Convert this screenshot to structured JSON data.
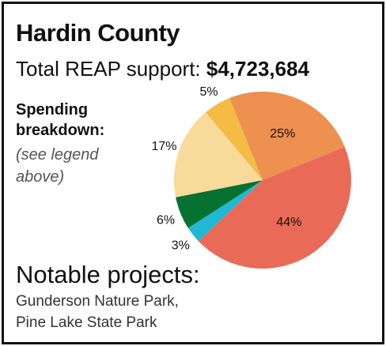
{
  "card": {
    "title": "Hardin County",
    "total_label": "Total REAP support:",
    "total_value": "$4,723,684",
    "breakdown_heading": "Spending breakdown:",
    "breakdown_note": "(see legend above)",
    "projects_heading": "Notable projects:",
    "projects": [
      "Gunderson Nature Park,",
      "Pine Lake State Park"
    ]
  },
  "chart_data": {
    "type": "pie",
    "title": "",
    "slices": [
      {
        "label": "25%",
        "value": 25,
        "color": "#ed9050"
      },
      {
        "label": "44%",
        "value": 44,
        "color": "#ea6a58"
      },
      {
        "label": "3%",
        "value": 3,
        "color": "#20b8d2"
      },
      {
        "label": "6%",
        "value": 6,
        "color": "#067232"
      },
      {
        "label": "17%",
        "value": 17,
        "color": "#f8da9a"
      },
      {
        "label": "5%",
        "value": 5,
        "color": "#f4bb45"
      }
    ]
  }
}
